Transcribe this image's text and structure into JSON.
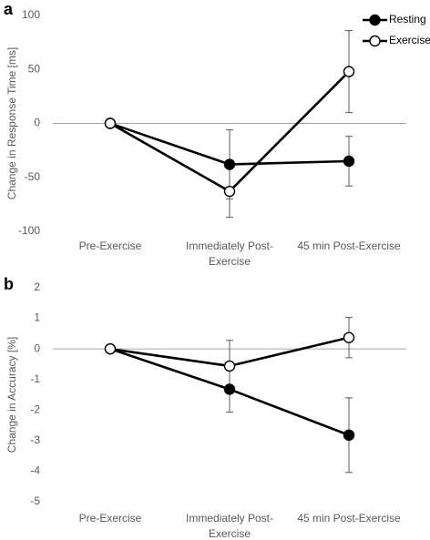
{
  "chart_data": [
    {
      "type": "line",
      "panel_label": "a",
      "title": "",
      "xlabel": "",
      "ylabel": "Change in Response Time [ms]",
      "categories": [
        "Pre-Exercise",
        "Immediately Post-Exercise",
        "45 min Post-Exercise"
      ],
      "category_lines": [
        [
          "Pre-Exercise"
        ],
        [
          "Immediately Post-",
          "Exercise"
        ],
        [
          "45 min Post-Exercise"
        ]
      ],
      "ylim": [
        -100,
        100
      ],
      "yticks": [
        -100,
        -50,
        0,
        50,
        100
      ],
      "grid": false,
      "zero_line": true,
      "legend_position": "top-right",
      "series": [
        {
          "name": "Resting",
          "marker": "filled-circle",
          "values": [
            0,
            -38,
            -35
          ],
          "error": [
            0,
            32,
            23
          ]
        },
        {
          "name": "Exercise",
          "marker": "open-circle",
          "values": [
            0,
            -63,
            48
          ],
          "error": [
            0,
            24,
            38
          ]
        }
      ]
    },
    {
      "type": "line",
      "panel_label": "b",
      "title": "",
      "xlabel": "",
      "ylabel": "Change in Accuracy [%]",
      "categories": [
        "Pre-Exercise",
        "Immediately Post-Exercise",
        "45 min Post-Exercise"
      ],
      "category_lines": [
        [
          "Pre-Exercise"
        ],
        [
          "Immediately Post-",
          "Exercise"
        ],
        [
          "45 min Post-Exercise"
        ]
      ],
      "ylim": [
        -5,
        2
      ],
      "yticks": [
        -5,
        -4,
        -3,
        -2,
        -1,
        0,
        1,
        2
      ],
      "grid": false,
      "zero_line": true,
      "series": [
        {
          "name": "Resting",
          "marker": "filled-circle",
          "values": [
            0,
            -1.32,
            -2.82
          ],
          "error": [
            0,
            0.75,
            1.22
          ]
        },
        {
          "name": "Exercise",
          "marker": "open-circle",
          "values": [
            0,
            -0.56,
            0.37
          ],
          "error": [
            0,
            0.84,
            0.66
          ]
        }
      ]
    }
  ]
}
